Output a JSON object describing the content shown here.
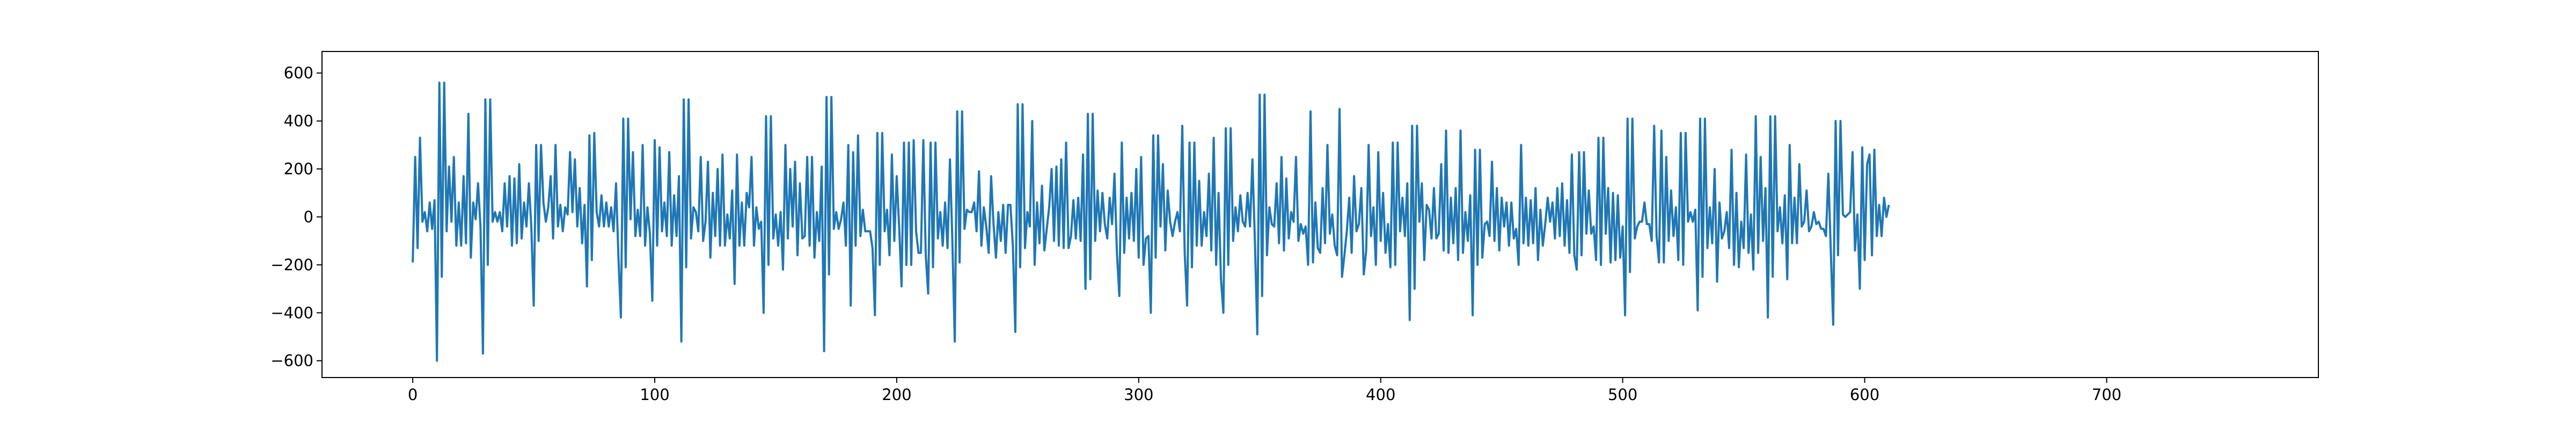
{
  "chart_data": {
    "type": "line",
    "title": "",
    "xlabel": "",
    "ylabel": "",
    "xlim": [
      -37.5,
      787.5
    ],
    "ylim": [
      -670,
      690
    ],
    "grid": false,
    "legend": "none",
    "x_ticks": [
      0,
      100,
      200,
      300,
      400,
      500,
      600,
      700
    ],
    "y_ticks": [
      -600,
      -400,
      -200,
      0,
      200,
      400,
      600
    ],
    "x_tick_labels": [
      "0",
      "100",
      "200",
      "300",
      "400",
      "500",
      "600",
      "700"
    ],
    "y_tick_labels": [
      "−600",
      "−400",
      "−200",
      "0",
      "200",
      "400",
      "600"
    ],
    "series": [
      {
        "color": "#1f77b4",
        "x_start": 0,
        "x_step": 1,
        "values": [
          -190,
          250,
          -130,
          330,
          -20,
          20,
          -60,
          60,
          -50,
          70,
          -600,
          560,
          -250,
          560,
          -60,
          210,
          -20,
          250,
          -120,
          60,
          -120,
          170,
          -110,
          430,
          -170,
          60,
          -10,
          140,
          -40,
          -570,
          490,
          -200,
          490,
          -20,
          20,
          -20,
          20,
          -60,
          140,
          -40,
          170,
          -120,
          160,
          -110,
          220,
          -90,
          60,
          -40,
          140,
          -40,
          -370,
          300,
          -100,
          300,
          60,
          -20,
          40,
          170,
          -90,
          300,
          -40,
          50,
          -60,
          40,
          10,
          270,
          20,
          240,
          -40,
          120,
          -110,
          50,
          -290,
          340,
          -180,
          350,
          20,
          -40,
          90,
          -40,
          60,
          -40,
          40,
          -60,
          140,
          -170,
          -420,
          410,
          -210,
          410,
          -10,
          270,
          -80,
          30,
          -80,
          300,
          -120,
          40,
          -70,
          -350,
          320,
          -120,
          290,
          -60,
          60,
          -80,
          270,
          -120,
          90,
          -80,
          170,
          -520,
          490,
          -210,
          490,
          -90,
          40,
          20,
          -60,
          250,
          -100,
          -20,
          230,
          -170,
          100,
          -80,
          200,
          -120,
          260,
          -120,
          10,
          -90,
          110,
          -280,
          260,
          -120,
          60,
          -120,
          100,
          40,
          250,
          -120,
          40,
          -50,
          -20,
          -400,
          420,
          -200,
          420,
          -90,
          10,
          -120,
          20,
          -220,
          300,
          -90,
          200,
          -40,
          230,
          -160,
          140,
          -90,
          -80,
          250,
          -120,
          250,
          -170,
          20,
          -100,
          210,
          -560,
          500,
          -240,
          500,
          -50,
          20,
          -50,
          -10,
          60,
          -120,
          300,
          -370,
          270,
          -120,
          340,
          -80,
          30,
          -60,
          -60,
          -60,
          -130,
          -410,
          350,
          -200,
          350,
          -60,
          30,
          -160,
          260,
          -100,
          170,
          -40,
          -290,
          310,
          -200,
          310,
          -200,
          320,
          -60,
          -150,
          -150,
          320,
          -160,
          -320,
          310,
          -210,
          310,
          -90,
          20,
          -120,
          60,
          -130,
          240,
          -100,
          -520,
          440,
          -190,
          440,
          -50,
          30,
          20,
          20,
          60,
          -60,
          190,
          -120,
          40,
          -40,
          -150,
          170,
          -30,
          -170,
          20,
          -100,
          50,
          -150,
          50,
          50,
          -120,
          -480,
          470,
          -210,
          470,
          -130,
          20,
          -40,
          400,
          -200,
          60,
          -110,
          130,
          -140,
          -50,
          40,
          200,
          -100,
          210,
          -120,
          240,
          -130,
          310,
          -130,
          -80,
          70,
          -90,
          80,
          -100,
          260,
          -300,
          430,
          -260,
          430,
          -100,
          110,
          -60,
          100,
          -30,
          -90,
          80,
          -30,
          180,
          -150,
          -330,
          310,
          -150,
          80,
          -90,
          100,
          -100,
          200,
          -170,
          250,
          -200,
          -90,
          -80,
          -400,
          340,
          -170,
          340,
          -40,
          220,
          -140,
          110,
          -20,
          -80,
          -20,
          20,
          -60,
          380,
          -150,
          -370,
          310,
          -210,
          310,
          -120,
          150,
          -120,
          20,
          -80,
          180,
          -140,
          330,
          -200,
          100,
          -260,
          -400,
          370,
          -200,
          370,
          -100,
          40,
          -60,
          90,
          -20,
          -40,
          100,
          -40,
          240,
          -100,
          -490,
          510,
          -330,
          510,
          -160,
          40,
          -30,
          -40,
          140,
          -110,
          250,
          -140,
          160,
          -90,
          20,
          -20,
          250,
          -100,
          -30,
          -70,
          -40,
          -200,
          440,
          -190,
          60,
          -130,
          -150,
          120,
          -110,
          300,
          -70,
          10,
          -120,
          -160,
          450,
          -250,
          -160,
          -60,
          80,
          -150,
          170,
          -60,
          -30,
          120,
          -240,
          -140,
          300,
          -80,
          40,
          -200,
          270,
          -100,
          100,
          -150,
          -30,
          -210,
          310,
          -200,
          310,
          -60,
          80,
          -80,
          140,
          -430,
          380,
          -300,
          380,
          -20,
          140,
          -180,
          50,
          30,
          -90,
          120,
          -90,
          -70,
          220,
          -140,
          360,
          -150,
          80,
          -110,
          120,
          -180,
          360,
          -150,
          20,
          -100,
          90,
          -410,
          280,
          -200,
          280,
          -170,
          -30,
          -20,
          -80,
          230,
          -100,
          120,
          -140,
          80,
          -40,
          60,
          -120,
          60,
          -90,
          -50,
          -200,
          300,
          -110,
          80,
          -120,
          70,
          -110,
          120,
          -180,
          30,
          -120,
          -30,
          80,
          -20,
          60,
          -90,
          120,
          -80,
          140,
          -120,
          70,
          -150,
          260,
          -160,
          -220,
          270,
          -160,
          270,
          -70,
          110,
          -70,
          -40,
          -180,
          330,
          -200,
          330,
          -70,
          120,
          -190,
          100,
          -180,
          90,
          -170,
          -40,
          -410,
          410,
          -230,
          410,
          -90,
          -40,
          -20,
          -20,
          60,
          -30,
          -30,
          -100,
          380,
          -80,
          -190,
          360,
          -190,
          250,
          -100,
          110,
          -80,
          40,
          -180,
          350,
          -200,
          350,
          -20,
          20,
          -20,
          30,
          -390,
          410,
          -250,
          410,
          -130,
          40,
          -110,
          200,
          -270,
          60,
          -90,
          -60,
          20,
          -130,
          280,
          -200,
          100,
          -210,
          -20,
          -130,
          260,
          -150,
          10,
          -220,
          420,
          -150,
          250,
          -100,
          120,
          -420,
          420,
          -250,
          420,
          -60,
          40,
          -110,
          90,
          -260,
          300,
          -110,
          80,
          -110,
          220,
          -40,
          -20,
          110,
          -60,
          -40,
          20,
          -30,
          -20,
          -50,
          -50,
          -80,
          180,
          -140,
          -450,
          400,
          -160,
          400,
          10,
          0,
          10,
          20,
          270,
          -140,
          10,
          -300,
          290,
          -180,
          220,
          260,
          -160,
          280,
          -80,
          50,
          -80,
          80,
          0,
          50
        ]
      }
    ]
  }
}
